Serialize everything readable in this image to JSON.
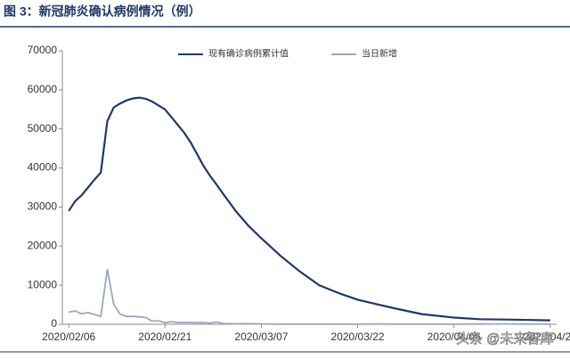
{
  "chart_data": {
    "type": "line",
    "title": "图 3：新冠肺炎确认病例情况（例）",
    "x": [
      "2020/02/06",
      "2020/02/07",
      "2020/02/08",
      "2020/02/09",
      "2020/02/10",
      "2020/02/11",
      "2020/02/12",
      "2020/02/13",
      "2020/02/14",
      "2020/02/15",
      "2020/02/16",
      "2020/02/17",
      "2020/02/18",
      "2020/02/19",
      "2020/02/20",
      "2020/02/21",
      "2020/02/22",
      "2020/02/23",
      "2020/02/24",
      "2020/02/25",
      "2020/02/26",
      "2020/02/27",
      "2020/02/28",
      "2020/02/29",
      "2020/03/01",
      "2020/03/03",
      "2020/03/05",
      "2020/03/07",
      "2020/03/10",
      "2020/03/13",
      "2020/03/16",
      "2020/03/19",
      "2020/03/22",
      "2020/03/25",
      "2020/03/28",
      "2020/04/01",
      "2020/04/06",
      "2020/04/10",
      "2020/04/14",
      "2020/04/18",
      "2020/04/21"
    ],
    "series": [
      {
        "name": "现有确诊病例累计值",
        "color": "#1f3864",
        "values": [
          29000,
          31500,
          33000,
          35000,
          37000,
          38800,
          52000,
          55500,
          56500,
          57300,
          57800,
          58000,
          57700,
          57000,
          56000,
          55000,
          53000,
          51000,
          49000,
          46500,
          43500,
          40500,
          38000,
          35800,
          33500,
          29000,
          25200,
          22000,
          17500,
          13500,
          10000,
          8000,
          6300,
          5100,
          4000,
          2600,
          1700,
          1300,
          1200,
          1100,
          1000
        ]
      },
      {
        "name": "当日新增",
        "color": "#9aa9bc",
        "values": [
          3100,
          3400,
          2700,
          3000,
          2500,
          2000,
          14100,
          5100,
          2600,
          2000,
          2000,
          1900,
          1700,
          800,
          900,
          400,
          650,
          400,
          500,
          400,
          400,
          430,
          330,
          570,
          200,
          120,
          140,
          100,
          30,
          15,
          20,
          40,
          50,
          60,
          50,
          40,
          30,
          60,
          90,
          25,
          20
        ]
      }
    ],
    "xlim": [
      "2020/02/05",
      "2020/04/22"
    ],
    "xticks": [
      "2020/02/06",
      "2020/02/21",
      "2020/03/07",
      "2020/03/22",
      "2020/04/06",
      "2020/04/21"
    ],
    "ylim": [
      0,
      70000
    ],
    "yticks": [
      0,
      10000,
      20000,
      30000,
      40000,
      50000,
      60000,
      70000
    ],
    "legend": "top",
    "watermark": "头条 @未来智库"
  }
}
